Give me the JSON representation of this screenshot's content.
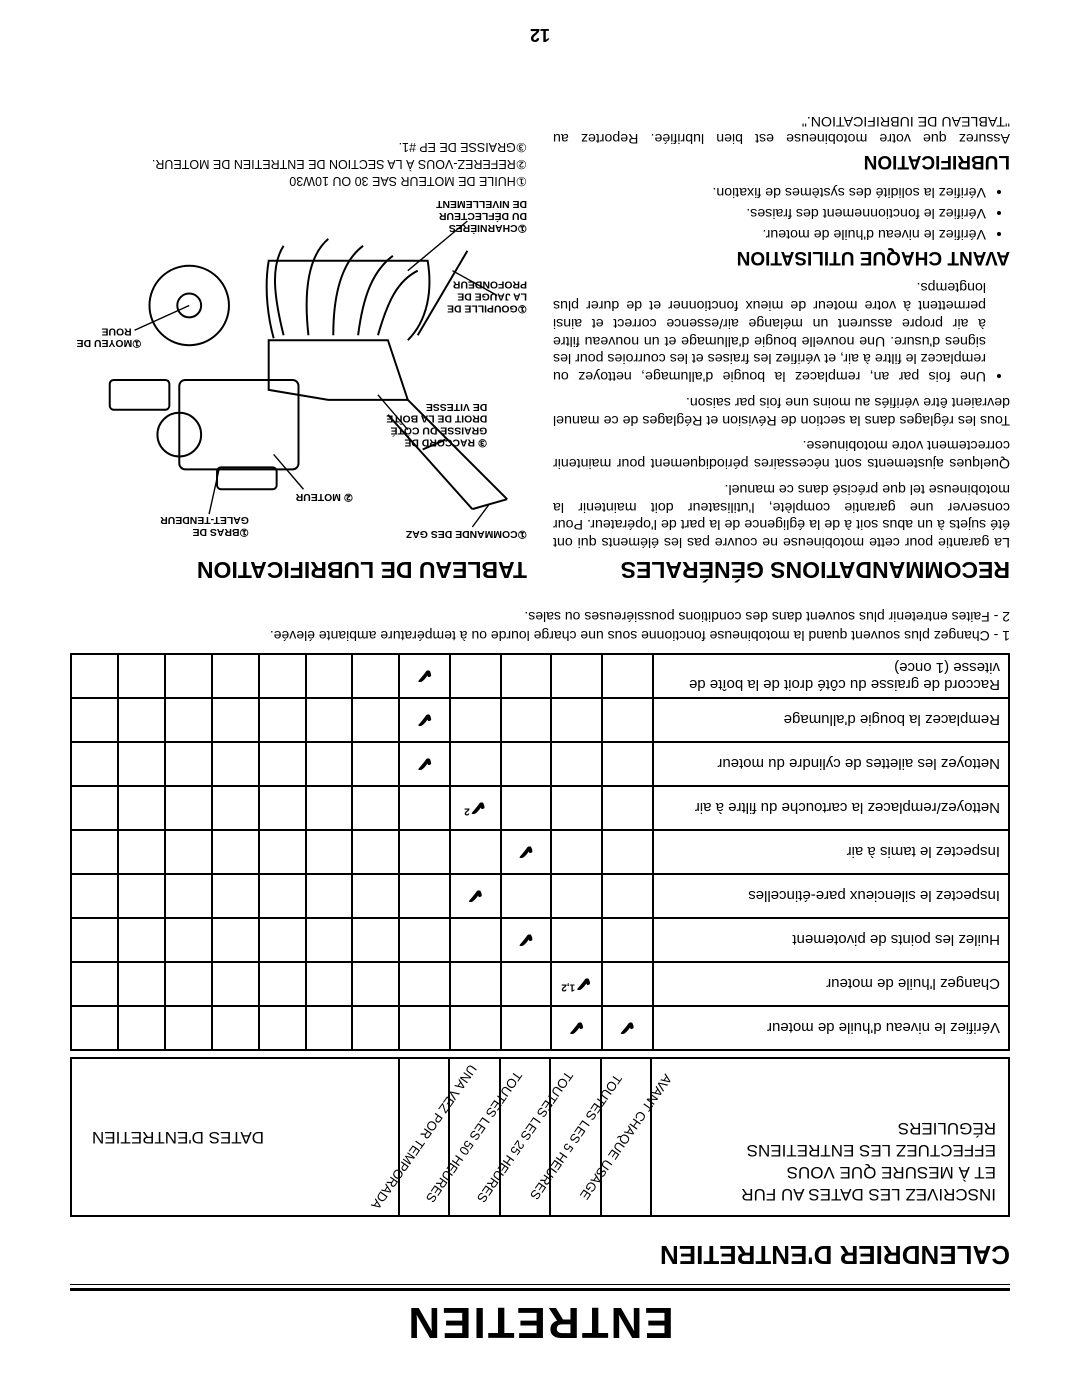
{
  "page_number": "12",
  "main_title": "ENTRETIEN",
  "calendar_title": "CALENDRIER D'ENTRETIEN",
  "left_header": {
    "l1": "INSCRIVEZ LES DATES AU FUR",
    "l2": "ET À MESURE QUE VOUS",
    "l3": "EFFECTUEZ LES ENTRETIENS",
    "l4": "RÉGULIERS"
  },
  "diag_cols": [
    "AVANT CHAQUE USAGE",
    "TOUTES LES 5 HEURES",
    "TOUTES LES 25 HEURES",
    "TOUTES LES 50 HEURES",
    "UNA VEZ POR TEMPORADA"
  ],
  "dates_header": "DATES D'ENTRETIEN",
  "rows": [
    {
      "label": "Vérifiez le niveau d'huile de moteur",
      "marks": [
        "✔",
        "✔",
        "",
        "",
        ""
      ]
    },
    {
      "label": "Changez l'huile de moteur",
      "marks": [
        "",
        "✔",
        "",
        "",
        ""
      ],
      "sup": "1,2",
      "supcol": 1
    },
    {
      "label": "Huilez les points de pivotement",
      "marks": [
        "",
        "",
        "✔",
        "",
        ""
      ]
    },
    {
      "label": "Inspectez le silencieux pare-étincelles",
      "marks": [
        "",
        "",
        "",
        "✔",
        ""
      ]
    },
    {
      "label": "Inspectez le tamis à air",
      "marks": [
        "",
        "",
        "✔",
        "",
        ""
      ]
    },
    {
      "label": "Nettoyez/remplacez la cartouche du filtre à air",
      "marks": [
        "",
        "",
        "",
        "✔",
        ""
      ],
      "sup": "2",
      "supcol": 3
    },
    {
      "label": "Nettoyez les ailettes de cylindre du moteur",
      "marks": [
        "",
        "",
        "",
        "",
        "✔"
      ]
    },
    {
      "label": "Remplacez la bougie d'allumage",
      "marks": [
        "",
        "",
        "",
        "",
        "✔"
      ]
    },
    {
      "label": "Raccord de graisse du côté droit de la boîte de vitesse (1 once)",
      "marks": [
        "",
        "",
        "",
        "",
        "✔"
      ]
    }
  ],
  "footnotes": {
    "f1": "1 - Changez plus souvent quand la motobineuse fonctionne sous une charge lourde ou à température ambiante élevée.",
    "f2": "2 - Faites entretenir plus souvent dans des conditions poussiéreuses ou sales."
  },
  "rec_title": "RECOMMANDATIONS GÉNÉRALES",
  "rec_para1": "La garantie pour cette motobineuse ne couvre pas les éléments qui ont été sujets à un abus soit à de la égligence de la part de l'opérateur. Pour conserver une garantie complète, l'utilisateur doit maintenir la motobineuse tel que précisé dans ce manuel.",
  "rec_para2": "Quelques ajustements sont nécessaires périodiquement pour maintenir correctement votre motobinuese.",
  "rec_para3": "Tous les réglages dans la section de Révision et Réglages de ce manuel devraient être vérifiés au moins une fois par saison.",
  "rec_bullet": "Une fois par an, remplacez la bougie d'allumage, nettoyez ou remplacez le filtre à air, et vérifiez les fraises et les courroies pour les signes d'usure. Une nouvelle bougie d'allumage et un nouveau filtre à air propre assurent un mélange air/essence correct et ainsi permettent à votre moteur de mieux fonctionner et de durer plus longtemps.",
  "avant_title": "AVANT CHAQUE UTILISATION",
  "avant_bullets": [
    "Vérifiez le niveau d'huile de moteur.",
    "Vérifiez le fonctionnement des fraises.",
    "Vérifiez la solidité des systèmes de fixation."
  ],
  "lub_title": "LUBRIFICATION",
  "lub_para": "Assurez que votre motobineuse est bien lubrifiée.  Reportez au \"TABLEAU DE IUBRIFICATION.\"",
  "chart_title": "TABLEAU DE LUBRIFICATION",
  "diagram_labels": {
    "a": "①COMMANDE DES GAZ",
    "b": "③ RACCORD DE GRAISSE DU CÔTÉ DROIT DE LA BOÎTE DE VITESSE",
    "c": "② MOTEUR",
    "d": "①GOUPILLE DE LA JAUGE DE PROFONDEUR",
    "e": "①CHARNIÈRES DU DÉFLECTEUR DE NIVELLEMENT",
    "f": "①BRAS DE GALET-TENDEUR",
    "g": "①MOYEU DE ROUE"
  },
  "legend": {
    "l1": "①HUILE DE MOTEUR SAE 30 OU 10W30",
    "l2": "②REFEREZ-VOUS À LA SECTION DE ENTRETIEN DE MOTEUR.",
    "l3": "③GRAISSE DE EP #1."
  },
  "colors": {
    "text": "#000000",
    "bg": "#ffffff",
    "line": "#000000"
  }
}
